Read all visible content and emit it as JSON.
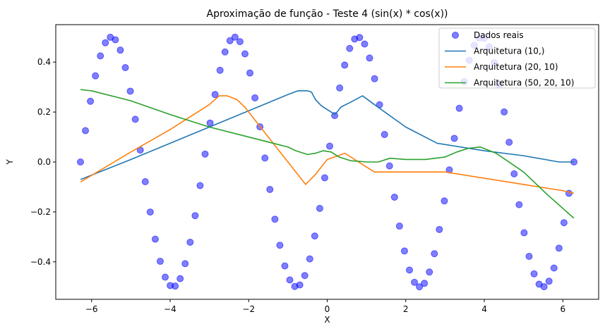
{
  "chart_data": {
    "type": "scatter+line",
    "title": "Aproximação de função - Teste 4 (sin(x) * cos(x))",
    "xlabel": "X",
    "ylabel": "Y",
    "xlim": [
      -6.912,
      6.912
    ],
    "ylim": [
      -0.55,
      0.55
    ],
    "xticks": [
      -6,
      -4,
      -2,
      0,
      2,
      4,
      6
    ],
    "xtick_labels": [
      "−6",
      "−4",
      "−2",
      "0",
      "2",
      "4",
      "6"
    ],
    "yticks": [
      -0.4,
      -0.2,
      0.0,
      0.2,
      0.4
    ],
    "ytick_labels": [
      "−0.4",
      "−0.2",
      "0.0",
      "0.2",
      "0.4"
    ],
    "grid": false,
    "legend_position": "top-right",
    "scatter": {
      "name": "Dados reais",
      "color": "#0000ff",
      "x_start": -6.2832,
      "x_end": 6.2832,
      "count": 100,
      "formula": "sin(x) * cos(x)"
    },
    "series": [
      {
        "name": "Arquitetura (10,)",
        "color": "#1f77b4",
        "points": [
          [
            -6.28,
            -0.07
          ],
          [
            -5.0,
            0.01
          ],
          [
            -3.0,
            0.14
          ],
          [
            -1.0,
            0.27
          ],
          [
            -0.75,
            0.285
          ],
          [
            -0.5,
            0.285
          ],
          [
            -0.4,
            0.28
          ],
          [
            -0.3,
            0.25
          ],
          [
            -0.15,
            0.225
          ],
          [
            0.0,
            0.21
          ],
          [
            0.1,
            0.2
          ],
          [
            0.2,
            0.19
          ],
          [
            0.35,
            0.22
          ],
          [
            0.6,
            0.24
          ],
          [
            0.9,
            0.265
          ],
          [
            1.2,
            0.23
          ],
          [
            2.0,
            0.14
          ],
          [
            2.8,
            0.075
          ],
          [
            4.0,
            0.045
          ],
          [
            5.0,
            0.025
          ],
          [
            5.9,
            0.0
          ],
          [
            6.28,
            0.0
          ]
        ]
      },
      {
        "name": "Arquitetura (20, 10)",
        "color": "#ff7f0e",
        "points": [
          [
            -6.28,
            -0.08
          ],
          [
            -5.0,
            0.04
          ],
          [
            -4.0,
            0.13
          ],
          [
            -3.0,
            0.23
          ],
          [
            -2.75,
            0.265
          ],
          [
            -2.55,
            0.265
          ],
          [
            -2.3,
            0.25
          ],
          [
            -2.1,
            0.22
          ],
          [
            -1.7,
            0.14
          ],
          [
            -1.2,
            0.04
          ],
          [
            -0.8,
            -0.04
          ],
          [
            -0.55,
            -0.09
          ],
          [
            -0.3,
            -0.05
          ],
          [
            0.0,
            0.01
          ],
          [
            0.45,
            0.035
          ],
          [
            0.8,
            0.0
          ],
          [
            1.2,
            -0.04
          ],
          [
            3.0,
            -0.04
          ],
          [
            4.0,
            -0.065
          ],
          [
            5.0,
            -0.09
          ],
          [
            6.0,
            -0.115
          ],
          [
            6.28,
            -0.125
          ]
        ]
      },
      {
        "name": "Arquitetura (50, 20, 10)",
        "color": "#2ca02c",
        "points": [
          [
            -6.28,
            0.29
          ],
          [
            -6.0,
            0.285
          ],
          [
            -5.0,
            0.245
          ],
          [
            -4.0,
            0.19
          ],
          [
            -3.0,
            0.14
          ],
          [
            -2.0,
            0.1
          ],
          [
            -1.0,
            0.06
          ],
          [
            -0.8,
            0.045
          ],
          [
            -0.5,
            0.03
          ],
          [
            -0.3,
            0.035
          ],
          [
            -0.1,
            0.045
          ],
          [
            0.1,
            0.04
          ],
          [
            0.3,
            0.02
          ],
          [
            0.6,
            0.005
          ],
          [
            1.0,
            0.0
          ],
          [
            1.3,
            0.0
          ],
          [
            1.6,
            0.015
          ],
          [
            2.0,
            0.01
          ],
          [
            2.5,
            0.01
          ],
          [
            3.0,
            0.02
          ],
          [
            3.3,
            0.04
          ],
          [
            3.6,
            0.055
          ],
          [
            3.9,
            0.06
          ],
          [
            4.3,
            0.035
          ],
          [
            5.0,
            -0.04
          ],
          [
            5.6,
            -0.13
          ],
          [
            6.28,
            -0.225
          ]
        ]
      }
    ]
  }
}
